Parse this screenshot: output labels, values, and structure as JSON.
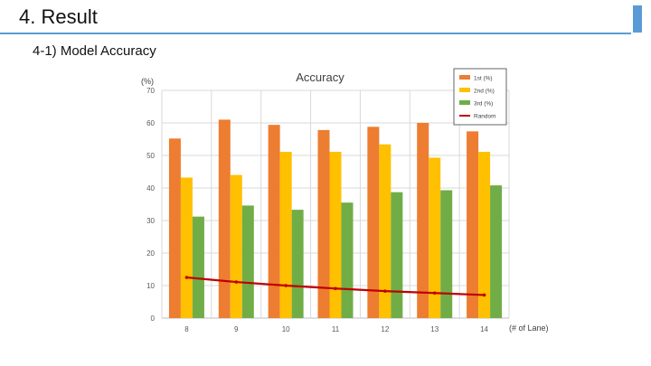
{
  "slide": {
    "title": "4. Result",
    "subtitle": "4-1) Model Accuracy",
    "accent_color": "#5b9bd5"
  },
  "chart_data": {
    "type": "bar",
    "title": "Accuracy",
    "ylabel": "(%)",
    "xlabel": "(# of Lane)",
    "ylim": [
      0,
      70
    ],
    "yticks": [
      0,
      10,
      20,
      30,
      40,
      50,
      60,
      70
    ],
    "grid": true,
    "legend_position": "top-right",
    "categories": [
      "8",
      "9",
      "10",
      "11",
      "12",
      "13",
      "14"
    ],
    "series": [
      {
        "name": "1st (%)",
        "type": "bar",
        "color": "#ed7d31",
        "values": [
          55.2,
          61.0,
          59.4,
          57.8,
          58.8,
          60.0,
          57.4
        ]
      },
      {
        "name": "2nd (%)",
        "type": "bar",
        "color": "#ffc000",
        "values": [
          43.2,
          44.0,
          51.1,
          51.1,
          53.4,
          49.3,
          51.1
        ]
      },
      {
        "name": "3rd (%)",
        "type": "bar",
        "color": "#70ad47",
        "values": [
          31.2,
          34.6,
          33.3,
          35.5,
          38.7,
          39.3,
          40.8
        ]
      },
      {
        "name": "Random",
        "type": "line",
        "color": "#c00000",
        "values": [
          12.5,
          11.1,
          10.0,
          9.1,
          8.3,
          7.7,
          7.1
        ]
      }
    ]
  }
}
